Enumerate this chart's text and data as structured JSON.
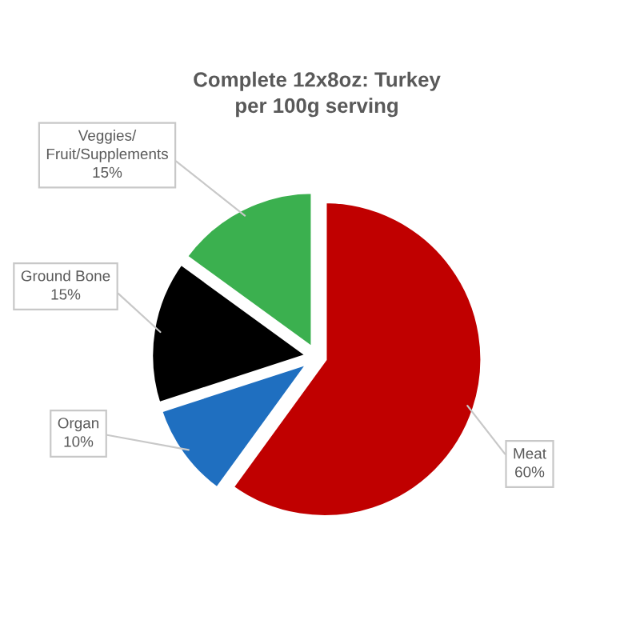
{
  "chart_data": {
    "type": "pie",
    "title": "Complete 12x8oz: Turkey per 100g serving",
    "categories": [
      "Meat",
      "Organ",
      "Ground Bone",
      "Veggies/Fruit/Supplements"
    ],
    "values": [
      60,
      10,
      15,
      15
    ],
    "value_labels": [
      "60%",
      "10%",
      "15%",
      "15%"
    ],
    "colors": [
      "#c00000",
      "#1f6fc0",
      "#000000",
      "#3bb04f"
    ]
  }
}
